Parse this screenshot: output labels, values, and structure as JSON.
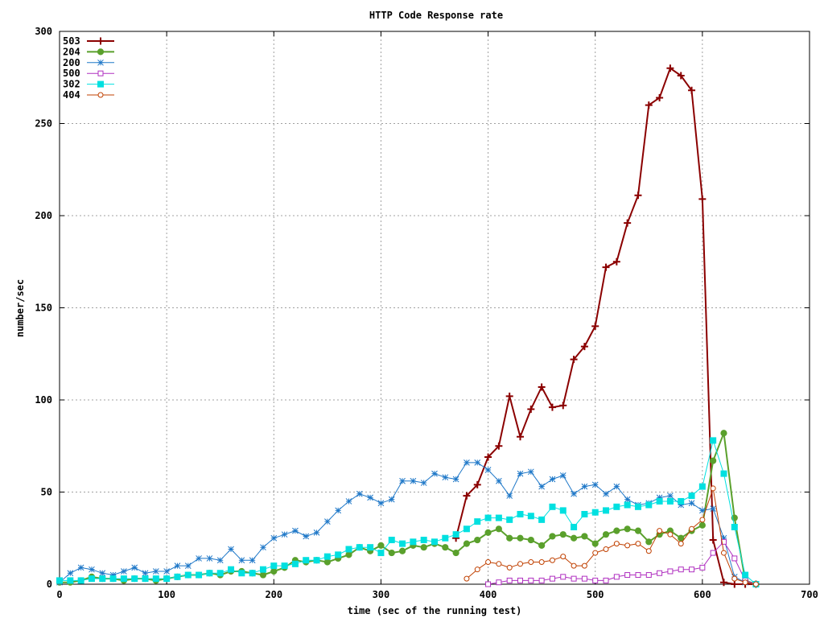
{
  "chart_data": {
    "type": "line",
    "title": "HTTP Code Response rate",
    "xlabel": "time (sec of the running test)",
    "ylabel": "number/sec",
    "xlim": [
      0,
      700
    ],
    "ylim": [
      0,
      300
    ],
    "xticks": [
      0,
      100,
      200,
      300,
      400,
      500,
      600,
      700
    ],
    "yticks": [
      0,
      50,
      100,
      150,
      200,
      250,
      300
    ],
    "grid": true,
    "legend_position": "top-left",
    "series": [
      {
        "name": "503",
        "color": "#8b0000",
        "marker": "plus",
        "line_width": 2,
        "points": [
          [
            370,
            25
          ],
          [
            380,
            48
          ],
          [
            390,
            54
          ],
          [
            400,
            69
          ],
          [
            410,
            75
          ],
          [
            420,
            102
          ],
          [
            430,
            80
          ],
          [
            440,
            95
          ],
          [
            450,
            107
          ],
          [
            460,
            96
          ],
          [
            470,
            97
          ],
          [
            480,
            122
          ],
          [
            490,
            129
          ],
          [
            500,
            140
          ],
          [
            510,
            172
          ],
          [
            520,
            175
          ],
          [
            530,
            196
          ],
          [
            540,
            211
          ],
          [
            550,
            260
          ],
          [
            560,
            264
          ],
          [
            570,
            280
          ],
          [
            580,
            276
          ],
          [
            590,
            268
          ],
          [
            600,
            209
          ],
          [
            610,
            24
          ],
          [
            620,
            1
          ],
          [
            630,
            0
          ],
          [
            640,
            0
          ],
          [
            650,
            0
          ]
        ]
      },
      {
        "name": "204",
        "color": "#5aa02c",
        "marker": "filled-circle",
        "line_width": 2,
        "points": [
          [
            0,
            1
          ],
          [
            10,
            1
          ],
          [
            20,
            2
          ],
          [
            30,
            4
          ],
          [
            40,
            3
          ],
          [
            50,
            3
          ],
          [
            60,
            2
          ],
          [
            70,
            3
          ],
          [
            80,
            3
          ],
          [
            90,
            2
          ],
          [
            100,
            3
          ],
          [
            110,
            4
          ],
          [
            120,
            5
          ],
          [
            130,
            5
          ],
          [
            140,
            6
          ],
          [
            150,
            5
          ],
          [
            160,
            7
          ],
          [
            170,
            7
          ],
          [
            180,
            6
          ],
          [
            190,
            5
          ],
          [
            200,
            7
          ],
          [
            210,
            9
          ],
          [
            220,
            13
          ],
          [
            230,
            12
          ],
          [
            240,
            13
          ],
          [
            250,
            12
          ],
          [
            260,
            14
          ],
          [
            270,
            16
          ],
          [
            280,
            20
          ],
          [
            290,
            18
          ],
          [
            300,
            21
          ],
          [
            310,
            17
          ],
          [
            320,
            18
          ],
          [
            330,
            21
          ],
          [
            340,
            20
          ],
          [
            350,
            22
          ],
          [
            360,
            20
          ],
          [
            370,
            17
          ],
          [
            380,
            22
          ],
          [
            390,
            24
          ],
          [
            400,
            28
          ],
          [
            410,
            30
          ],
          [
            420,
            25
          ],
          [
            430,
            25
          ],
          [
            440,
            24
          ],
          [
            450,
            21
          ],
          [
            460,
            26
          ],
          [
            470,
            27
          ],
          [
            480,
            25
          ],
          [
            490,
            26
          ],
          [
            500,
            22
          ],
          [
            510,
            27
          ],
          [
            520,
            29
          ],
          [
            530,
            30
          ],
          [
            540,
            29
          ],
          [
            550,
            23
          ],
          [
            560,
            27
          ],
          [
            570,
            29
          ],
          [
            580,
            25
          ],
          [
            590,
            29
          ],
          [
            600,
            32
          ],
          [
            610,
            67
          ],
          [
            620,
            82
          ],
          [
            630,
            36
          ],
          [
            640,
            2
          ],
          [
            650,
            0
          ]
        ]
      },
      {
        "name": "200",
        "color": "#1f78c8",
        "marker": "star",
        "line_width": 1,
        "points": [
          [
            0,
            1
          ],
          [
            10,
            6
          ],
          [
            20,
            9
          ],
          [
            30,
            8
          ],
          [
            40,
            6
          ],
          [
            50,
            5
          ],
          [
            60,
            7
          ],
          [
            70,
            9
          ],
          [
            80,
            6
          ],
          [
            90,
            7
          ],
          [
            100,
            7
          ],
          [
            110,
            10
          ],
          [
            120,
            10
          ],
          [
            130,
            14
          ],
          [
            140,
            14
          ],
          [
            150,
            13
          ],
          [
            160,
            19
          ],
          [
            170,
            13
          ],
          [
            180,
            13
          ],
          [
            190,
            20
          ],
          [
            200,
            25
          ],
          [
            210,
            27
          ],
          [
            220,
            29
          ],
          [
            230,
            26
          ],
          [
            240,
            28
          ],
          [
            250,
            34
          ],
          [
            260,
            40
          ],
          [
            270,
            45
          ],
          [
            280,
            49
          ],
          [
            290,
            47
          ],
          [
            300,
            44
          ],
          [
            310,
            46
          ],
          [
            320,
            56
          ],
          [
            330,
            56
          ],
          [
            340,
            55
          ],
          [
            350,
            60
          ],
          [
            360,
            58
          ],
          [
            370,
            57
          ],
          [
            380,
            66
          ],
          [
            390,
            66
          ],
          [
            400,
            62
          ],
          [
            410,
            56
          ],
          [
            420,
            48
          ],
          [
            430,
            60
          ],
          [
            440,
            61
          ],
          [
            450,
            53
          ],
          [
            460,
            57
          ],
          [
            470,
            59
          ],
          [
            480,
            49
          ],
          [
            490,
            53
          ],
          [
            500,
            54
          ],
          [
            510,
            49
          ],
          [
            520,
            53
          ],
          [
            530,
            46
          ],
          [
            540,
            43
          ],
          [
            550,
            44
          ],
          [
            560,
            47
          ],
          [
            570,
            48
          ],
          [
            580,
            43
          ],
          [
            590,
            44
          ],
          [
            600,
            40
          ],
          [
            610,
            41
          ],
          [
            620,
            25
          ],
          [
            630,
            4
          ],
          [
            640,
            1
          ],
          [
            650,
            0
          ]
        ]
      },
      {
        "name": "500",
        "color": "#b030c0",
        "marker": "open-square",
        "line_width": 1,
        "points": [
          [
            400,
            0
          ],
          [
            410,
            1
          ],
          [
            420,
            2
          ],
          [
            430,
            2
          ],
          [
            440,
            2
          ],
          [
            450,
            2
          ],
          [
            460,
            3
          ],
          [
            470,
            4
          ],
          [
            480,
            3
          ],
          [
            490,
            3
          ],
          [
            500,
            2
          ],
          [
            510,
            2
          ],
          [
            520,
            4
          ],
          [
            530,
            5
          ],
          [
            540,
            5
          ],
          [
            550,
            5
          ],
          [
            560,
            6
          ],
          [
            570,
            7
          ],
          [
            580,
            8
          ],
          [
            590,
            8
          ],
          [
            600,
            9
          ],
          [
            610,
            17
          ],
          [
            620,
            23
          ],
          [
            630,
            14
          ],
          [
            640,
            2
          ],
          [
            650,
            0
          ]
        ]
      },
      {
        "name": "302",
        "color": "#00e0e0",
        "marker": "filled-square",
        "line_width": 1,
        "points": [
          [
            0,
            2
          ],
          [
            10,
            2
          ],
          [
            20,
            2
          ],
          [
            30,
            3
          ],
          [
            40,
            3
          ],
          [
            50,
            3
          ],
          [
            60,
            3
          ],
          [
            70,
            3
          ],
          [
            80,
            3
          ],
          [
            90,
            3
          ],
          [
            100,
            3
          ],
          [
            110,
            4
          ],
          [
            120,
            5
          ],
          [
            130,
            5
          ],
          [
            140,
            6
          ],
          [
            150,
            6
          ],
          [
            160,
            8
          ],
          [
            170,
            6
          ],
          [
            180,
            6
          ],
          [
            190,
            8
          ],
          [
            200,
            10
          ],
          [
            210,
            10
          ],
          [
            220,
            11
          ],
          [
            230,
            13
          ],
          [
            240,
            13
          ],
          [
            250,
            15
          ],
          [
            260,
            16
          ],
          [
            270,
            19
          ],
          [
            280,
            20
          ],
          [
            290,
            20
          ],
          [
            300,
            17
          ],
          [
            310,
            24
          ],
          [
            320,
            22
          ],
          [
            330,
            23
          ],
          [
            340,
            24
          ],
          [
            350,
            23
          ],
          [
            360,
            25
          ],
          [
            370,
            27
          ],
          [
            380,
            30
          ],
          [
            390,
            34
          ],
          [
            400,
            36
          ],
          [
            410,
            36
          ],
          [
            420,
            35
          ],
          [
            430,
            38
          ],
          [
            440,
            37
          ],
          [
            450,
            35
          ],
          [
            460,
            42
          ],
          [
            470,
            40
          ],
          [
            480,
            31
          ],
          [
            490,
            38
          ],
          [
            500,
            39
          ],
          [
            510,
            40
          ],
          [
            520,
            42
          ],
          [
            530,
            43
          ],
          [
            540,
            42
          ],
          [
            550,
            43
          ],
          [
            560,
            45
          ],
          [
            570,
            45
          ],
          [
            580,
            45
          ],
          [
            590,
            48
          ],
          [
            600,
            53
          ],
          [
            610,
            78
          ],
          [
            620,
            60
          ],
          [
            630,
            31
          ],
          [
            640,
            5
          ],
          [
            650,
            0
          ]
        ]
      },
      {
        "name": "404",
        "color": "#c04000",
        "marker": "open-circle",
        "line_width": 1,
        "points": [
          [
            380,
            3
          ],
          [
            390,
            8
          ],
          [
            400,
            12
          ],
          [
            410,
            11
          ],
          [
            420,
            9
          ],
          [
            430,
            11
          ],
          [
            440,
            12
          ],
          [
            450,
            12
          ],
          [
            460,
            13
          ],
          [
            470,
            15
          ],
          [
            480,
            10
          ],
          [
            490,
            10
          ],
          [
            500,
            17
          ],
          [
            510,
            19
          ],
          [
            520,
            22
          ],
          [
            530,
            21
          ],
          [
            540,
            22
          ],
          [
            550,
            18
          ],
          [
            560,
            29
          ],
          [
            570,
            27
          ],
          [
            580,
            22
          ],
          [
            590,
            30
          ],
          [
            600,
            35
          ],
          [
            610,
            52
          ],
          [
            620,
            17
          ],
          [
            630,
            3
          ],
          [
            640,
            1
          ],
          [
            650,
            0
          ]
        ]
      }
    ]
  }
}
